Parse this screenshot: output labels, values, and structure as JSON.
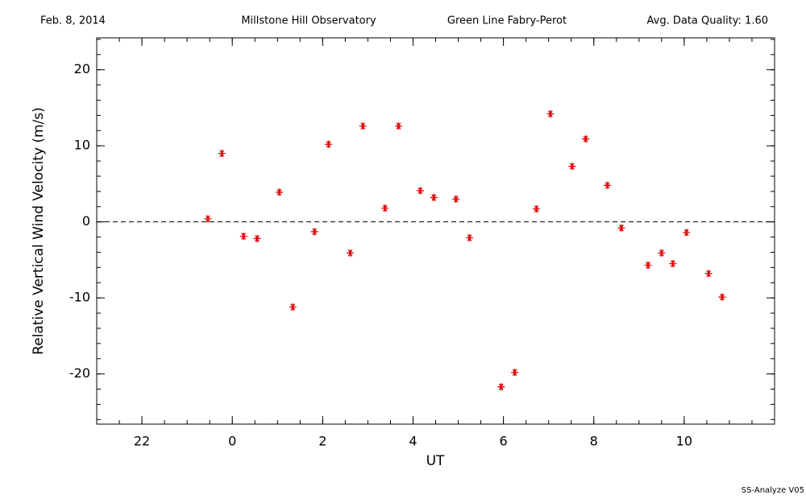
{
  "chart_data": {
    "type": "scatter",
    "header": [
      "Feb. 8, 2014",
      "Millstone Hill Observatory",
      "Green Line Fabry-Perot",
      "Avg. Data Quality: 1.60"
    ],
    "footer": "SS-Analyze V05",
    "x_label": "UT",
    "y_label": "Relative Vertical Wind Velocity (m/s)",
    "color": "#e00000",
    "marker": "asterisk",
    "reference_line": 0,
    "minor_divisions": {
      "x": 4,
      "y": 5
    },
    "xlim": [
      -3,
      12
    ],
    "ylim": [
      -26.6,
      24.2
    ],
    "xticks": [
      {
        "value": -2,
        "label": "22"
      },
      0,
      2,
      4,
      6,
      8,
      10
    ],
    "yticks": [
      -20,
      -10,
      0,
      10,
      20
    ],
    "x": [
      -0.54,
      -0.23,
      0.25,
      0.55,
      1.04,
      1.34,
      1.82,
      2.13,
      2.61,
      2.89,
      3.38,
      3.68,
      4.16,
      4.46,
      4.95,
      5.25,
      5.95,
      6.25,
      6.73,
      7.04,
      7.52,
      7.82,
      8.3,
      8.61,
      9.2,
      9.5,
      9.75,
      10.05,
      10.54,
      10.84
    ],
    "values": [
      0.4,
      9.0,
      -1.9,
      -2.2,
      3.9,
      -11.2,
      -1.3,
      10.2,
      -4.1,
      12.6,
      1.8,
      12.6,
      4.1,
      3.2,
      3.0,
      -2.1,
      -21.7,
      -19.8,
      1.7,
      14.2,
      7.3,
      10.9,
      4.8,
      -0.8,
      -5.7,
      -4.1,
      -5.5,
      -1.4,
      -6.8,
      -9.9
    ]
  }
}
